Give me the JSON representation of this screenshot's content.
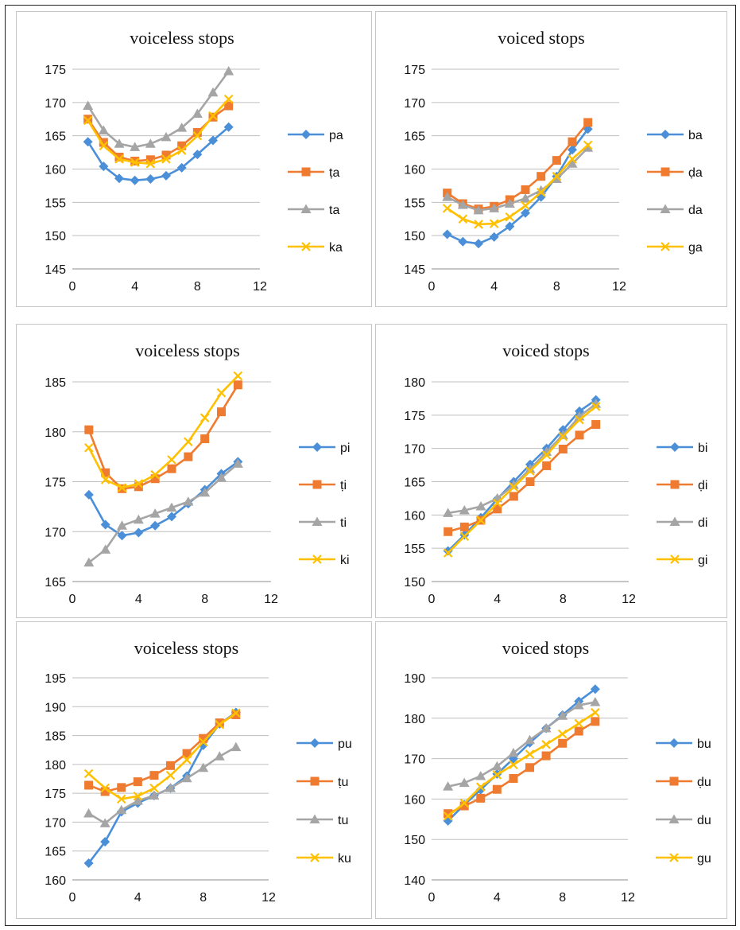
{
  "chart_data": [
    {
      "type": "line",
      "title": "voiceless stops",
      "x": [
        1,
        2,
        3,
        4,
        5,
        6,
        7,
        8,
        9,
        10
      ],
      "xlim": [
        0,
        12
      ],
      "xticks": [
        0,
        4,
        8,
        12
      ],
      "ylim": [
        145,
        175
      ],
      "yticks": [
        145,
        150,
        155,
        160,
        165,
        170,
        175
      ],
      "legend": "right",
      "series": [
        {
          "name": "pa",
          "color": "#4A8FD8",
          "marker": "diamond",
          "values": [
            164.1,
            160.4,
            158.6,
            158.3,
            158.5,
            159.0,
            160.2,
            162.2,
            164.3,
            166.3
          ]
        },
        {
          "name": "ṭa",
          "color": "#EE7B30",
          "marker": "square",
          "values": [
            167.5,
            164.0,
            161.8,
            161.2,
            161.4,
            162.1,
            163.5,
            165.5,
            167.8,
            169.5
          ]
        },
        {
          "name": "ta",
          "color": "#A5A5A5",
          "marker": "triangle",
          "values": [
            169.5,
            165.8,
            163.8,
            163.3,
            163.8,
            164.8,
            166.2,
            168.3,
            171.5,
            174.7
          ]
        },
        {
          "name": "ka",
          "color": "#FFC000",
          "marker": "x",
          "values": [
            167.3,
            163.5,
            161.5,
            161.0,
            160.8,
            161.5,
            162.8,
            165.0,
            168.0,
            170.5
          ]
        }
      ]
    },
    {
      "type": "line",
      "title": "voiced stops",
      "x": [
        1,
        2,
        3,
        4,
        5,
        6,
        7,
        8,
        9,
        10
      ],
      "xlim": [
        0,
        12
      ],
      "xticks": [
        0,
        4,
        8,
        12
      ],
      "ylim": [
        145,
        175
      ],
      "yticks": [
        145,
        150,
        155,
        160,
        165,
        170,
        175
      ],
      "legend": "right",
      "series": [
        {
          "name": "ba",
          "color": "#4A8FD8",
          "marker": "diamond",
          "values": [
            150.2,
            149.1,
            148.8,
            149.8,
            151.4,
            153.4,
            155.8,
            158.9,
            162.9,
            166.0
          ]
        },
        {
          "name": "ḍa",
          "color": "#EE7B30",
          "marker": "square",
          "values": [
            156.4,
            154.8,
            154.0,
            154.4,
            155.4,
            156.9,
            158.9,
            161.3,
            164.1,
            167.0
          ]
        },
        {
          "name": "da",
          "color": "#A5A5A5",
          "marker": "triangle",
          "values": [
            155.8,
            154.6,
            153.8,
            154.1,
            154.8,
            155.6,
            156.8,
            158.5,
            160.8,
            163.2
          ]
        },
        {
          "name": "ga",
          "color": "#FFC000",
          "marker": "x",
          "values": [
            154.1,
            152.5,
            151.7,
            151.8,
            152.8,
            154.5,
            156.5,
            158.9,
            161.5,
            163.6
          ]
        }
      ]
    },
    {
      "type": "line",
      "title": "voiceless stops",
      "x": [
        1,
        2,
        3,
        4,
        5,
        6,
        7,
        8,
        9,
        10
      ],
      "xlim": [
        0,
        12
      ],
      "xticks": [
        0,
        4,
        8,
        12
      ],
      "ylim": [
        165,
        185
      ],
      "yticks": [
        165,
        170,
        175,
        180,
        185
      ],
      "legend": "right",
      "series": [
        {
          "name": "pi",
          "color": "#4A8FD8",
          "marker": "diamond",
          "values": [
            173.7,
            170.7,
            169.6,
            169.9,
            170.6,
            171.5,
            172.8,
            174.2,
            175.8,
            177.0
          ]
        },
        {
          "name": "ṭi",
          "color": "#EE7B30",
          "marker": "square",
          "values": [
            180.2,
            175.9,
            174.3,
            174.5,
            175.3,
            176.3,
            177.5,
            179.3,
            182.0,
            184.7
          ]
        },
        {
          "name": "ti",
          "color": "#A5A5A5",
          "marker": "triangle",
          "values": [
            166.9,
            168.2,
            170.6,
            171.2,
            171.8,
            172.4,
            173.0,
            173.9,
            175.4,
            176.8
          ]
        },
        {
          "name": "ki",
          "color": "#FFC000",
          "marker": "x",
          "values": [
            178.4,
            175.2,
            174.4,
            174.8,
            175.7,
            177.2,
            179.0,
            181.4,
            183.9,
            185.6
          ]
        }
      ]
    },
    {
      "type": "line",
      "title": "voiced stops",
      "x": [
        1,
        2,
        3,
        4,
        5,
        6,
        7,
        8,
        9,
        10
      ],
      "xlim": [
        0,
        12
      ],
      "xticks": [
        0,
        4,
        8,
        12
      ],
      "ylim": [
        150,
        180
      ],
      "yticks": [
        150,
        155,
        160,
        165,
        170,
        175,
        180
      ],
      "legend": "right",
      "series": [
        {
          "name": "bi",
          "color": "#4A8FD8",
          "marker": "diamond",
          "values": [
            154.6,
            157.0,
            159.6,
            162.4,
            165.0,
            167.6,
            170.0,
            172.8,
            175.6,
            177.3
          ]
        },
        {
          "name": "ḍi",
          "color": "#EE7B30",
          "marker": "square",
          "values": [
            157.5,
            158.2,
            159.2,
            160.9,
            162.8,
            165.0,
            167.4,
            169.9,
            172.0,
            173.6
          ]
        },
        {
          "name": "di",
          "color": "#A5A5A5",
          "marker": "triangle",
          "values": [
            160.3,
            160.7,
            161.3,
            162.5,
            164.5,
            166.9,
            169.5,
            172.0,
            174.8,
            176.7
          ]
        },
        {
          "name": "gi",
          "color": "#FFC000",
          "marker": "x",
          "values": [
            154.3,
            156.8,
            159.2,
            161.8,
            164.2,
            166.6,
            169.0,
            171.8,
            174.3,
            176.3
          ]
        }
      ]
    },
    {
      "type": "line",
      "title": "voiceless stops",
      "x": [
        1,
        2,
        3,
        4,
        5,
        6,
        7,
        8,
        9,
        10
      ],
      "xlim": [
        0,
        12
      ],
      "xticks": [
        0,
        4,
        8,
        12
      ],
      "ylim": [
        160,
        195
      ],
      "yticks": [
        160,
        165,
        170,
        175,
        180,
        185,
        190,
        195
      ],
      "legend": "right",
      "series": [
        {
          "name": "pu",
          "color": "#4A8FD8",
          "marker": "diamond",
          "values": [
            162.9,
            166.6,
            171.8,
            173.3,
            174.6,
            175.9,
            178.0,
            183.3,
            187.0,
            189.0
          ]
        },
        {
          "name": "ṭu",
          "color": "#EE7B30",
          "marker": "square",
          "values": [
            176.4,
            175.3,
            176.0,
            177.0,
            178.1,
            179.8,
            181.9,
            184.5,
            187.2,
            188.6
          ]
        },
        {
          "name": "tu",
          "color": "#A5A5A5",
          "marker": "triangle",
          "values": [
            171.5,
            169.8,
            172.1,
            173.7,
            174.6,
            175.9,
            177.6,
            179.4,
            181.4,
            183.0
          ]
        },
        {
          "name": "ku",
          "color": "#FFC000",
          "marker": "x",
          "values": [
            178.4,
            175.9,
            174.0,
            174.5,
            175.9,
            178.1,
            180.8,
            183.9,
            186.9,
            188.9
          ]
        }
      ]
    },
    {
      "type": "line",
      "title": "voiced stops",
      "x": [
        1,
        2,
        3,
        4,
        5,
        6,
        7,
        8,
        9,
        10
      ],
      "xlim": [
        0,
        12
      ],
      "xticks": [
        0,
        4,
        8,
        12
      ],
      "ylim": [
        140,
        190
      ],
      "yticks": [
        140,
        150,
        160,
        170,
        180,
        190
      ],
      "legend": "right",
      "series": [
        {
          "name": "bu",
          "color": "#4A8FD8",
          "marker": "diamond",
          "values": [
            154.6,
            158.6,
            162.3,
            166.2,
            170.0,
            173.9,
            177.5,
            180.8,
            184.2,
            187.2
          ]
        },
        {
          "name": "ḍu",
          "color": "#EE7B30",
          "marker": "square",
          "values": [
            156.4,
            158.3,
            160.2,
            162.4,
            165.1,
            167.8,
            170.7,
            173.8,
            176.8,
            179.2
          ]
        },
        {
          "name": "du",
          "color": "#A5A5A5",
          "marker": "triangle",
          "values": [
            163.1,
            164.0,
            165.7,
            168.1,
            171.4,
            174.6,
            177.5,
            180.6,
            183.2,
            184.0
          ]
        },
        {
          "name": "gu",
          "color": "#FFC000",
          "marker": "x",
          "values": [
            155.8,
            159.0,
            163.0,
            166.0,
            168.5,
            171.1,
            173.5,
            176.1,
            178.7,
            181.4
          ]
        }
      ]
    }
  ]
}
